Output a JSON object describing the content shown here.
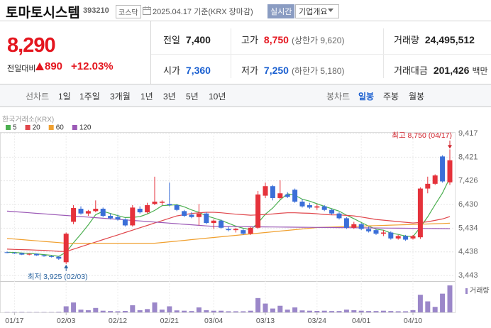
{
  "header": {
    "name": "토마토시스템",
    "code": "393210",
    "market": "코스닥",
    "date": "2025.04.17 기준(KRX 장마감)",
    "realtime": "실시간",
    "company": "기업개요"
  },
  "quote": {
    "price": "8,290",
    "change_label": "전일대비",
    "change": "890",
    "change_rate": "+12.03%"
  },
  "stats": [
    {
      "label": "전일",
      "value": "7,400"
    },
    {
      "label": "고가",
      "value": "8,750",
      "note": "(상한가 9,620)",
      "color": "#e4161f"
    },
    {
      "label": "거래량",
      "value": "24,495,512"
    },
    {
      "label": "시가",
      "value": "7,360",
      "color": "#1a5fd0"
    },
    {
      "label": "저가",
      "value": "7,250",
      "note": "(하한가 5,180)",
      "color": "#1a5fd0"
    },
    {
      "label": "거래대금",
      "value": "201,426",
      "unit": "백만"
    }
  ],
  "tabs": {
    "line_label": "선차트",
    "line": [
      "1일",
      "1주일",
      "3개월",
      "1년",
      "3년",
      "5년",
      "10년"
    ],
    "candle_label": "봉차트",
    "candle": [
      "일봉",
      "주봉",
      "월봉"
    ],
    "active_candle": 0
  },
  "chart_data": {
    "type": "candlestick",
    "source": "한국거래소(KRX)",
    "volume_label": "거래량",
    "annotations": {
      "high": "최고 8,750 (04/17)",
      "low": "최저 3,925 (02/03)"
    },
    "up_color": "#e5323b",
    "down_color": "#3b6fd8",
    "volume_color": "#9b87c9",
    "high_color": "#d0212a",
    "low_color": "#2a64a0",
    "grid": true,
    "ylim": [
      3443,
      9417
    ],
    "yticks": [
      {
        "value": 3443,
        "label": "3,443"
      },
      {
        "value": 4438,
        "label": "4,438"
      },
      {
        "value": 5434,
        "label": "5,434"
      },
      {
        "value": 6430,
        "label": "6,430"
      },
      {
        "value": 7426,
        "label": "7,426"
      },
      {
        "value": 8421,
        "label": "8,421"
      },
      {
        "value": 9417,
        "label": "9,417"
      }
    ],
    "categories": [
      null,
      "01/17",
      null,
      null,
      null,
      null,
      null,
      null,
      "02/03",
      null,
      null,
      null,
      null,
      null,
      null,
      "02/12",
      null,
      null,
      null,
      null,
      null,
      null,
      "02/21",
      null,
      null,
      null,
      null,
      null,
      "03/04",
      null,
      null,
      null,
      null,
      null,
      null,
      "03/13",
      null,
      null,
      null,
      null,
      null,
      null,
      "03/24",
      null,
      null,
      null,
      null,
      null,
      "04/01",
      null,
      null,
      null,
      null,
      null,
      null,
      "04/10",
      null,
      null,
      null,
      null,
      null
    ],
    "open": [
      4420,
      4400,
      4380,
      4320,
      4350,
      4290,
      4250,
      4230,
      4000,
      5700,
      6250,
      6050,
      6150,
      6250,
      5950,
      5900,
      5800,
      5550,
      6250,
      6100,
      6450,
      6500,
      6450,
      6400,
      6150,
      6000,
      5900,
      6050,
      5650,
      5750,
      5400,
      5350,
      5350,
      5200,
      5450,
      6800,
      7200,
      6700,
      6850,
      7050,
      6550,
      6400,
      6300,
      6350,
      6200,
      6050,
      5850,
      5450,
      5600,
      5400,
      5350,
      5200,
      5250,
      5000,
      5100,
      5000,
      5050,
      7100,
      7300,
      8450,
      7360
    ],
    "high": [
      4450,
      4430,
      4400,
      4380,
      4370,
      4320,
      4290,
      4250,
      5250,
      6400,
      6350,
      6200,
      6600,
      6300,
      6050,
      6000,
      5850,
      6400,
      6350,
      6500,
      7600,
      6600,
      7350,
      6450,
      6200,
      6100,
      6450,
      6100,
      5800,
      5800,
      5500,
      5450,
      5400,
      5500,
      7000,
      7350,
      7250,
      7450,
      6950,
      7100,
      6650,
      6500,
      6450,
      6400,
      6250,
      6100,
      5900,
      5700,
      5650,
      5500,
      5400,
      5350,
      5300,
      5150,
      5150,
      5150,
      7150,
      7600,
      7700,
      8500,
      8750
    ],
    "low": [
      4380,
      4350,
      4300,
      4290,
      4270,
      4230,
      4200,
      4100,
      3925,
      5600,
      6000,
      5950,
      6100,
      5900,
      5800,
      5750,
      5500,
      5500,
      6050,
      6050,
      6400,
      6400,
      6350,
      6150,
      5900,
      5850,
      5550,
      5600,
      5400,
      5400,
      5300,
      5250,
      5150,
      5150,
      5400,
      6700,
      6600,
      6650,
      6700,
      6500,
      6300,
      6250,
      6200,
      6150,
      6000,
      5800,
      5400,
      5400,
      5350,
      5250,
      5150,
      5100,
      4950,
      4950,
      4900,
      4950,
      4980,
      6900,
      7250,
      7350,
      7250
    ],
    "close": [
      4400,
      4380,
      4320,
      4350,
      4290,
      4250,
      4230,
      4150,
      5200,
      6280,
      6050,
      6150,
      6250,
      5950,
      5850,
      5800,
      5550,
      6300,
      6100,
      6400,
      6550,
      6550,
      6400,
      6200,
      5950,
      5900,
      6050,
      5650,
      5750,
      5450,
      5350,
      5400,
      5200,
      5450,
      6850,
      7200,
      6700,
      6900,
      6750,
      6550,
      6350,
      6300,
      6350,
      6200,
      6050,
      5850,
      5450,
      5600,
      5400,
      5300,
      5200,
      5250,
      5000,
      5100,
      4950,
      5100,
      7100,
      7300,
      7650,
      7400,
      8290
    ],
    "volume": [
      300000,
      300000,
      400000,
      300000,
      300000,
      300000,
      300000,
      500000,
      5500000,
      9000000,
      2500000,
      2000000,
      4000000,
      1500000,
      1200000,
      1000000,
      1300000,
      6500000,
      2000000,
      3000000,
      9000000,
      2500000,
      5500000,
      1800000,
      1500000,
      1200000,
      4500000,
      2000000,
      1500000,
      1500000,
      1000000,
      1000000,
      1000000,
      1500000,
      13000000,
      8000000,
      3500000,
      6000000,
      2500000,
      4500000,
      1800000,
      1500000,
      1300000,
      1500000,
      1200000,
      1200000,
      2500000,
      2000000,
      1500000,
      1200000,
      1200000,
      1500000,
      1200000,
      1000000,
      1000000,
      2000000,
      16000000,
      10000000,
      5000000,
      17000000,
      24495512
    ],
    "series": [
      {
        "name": "5",
        "color": "#4caf50",
        "values": [
          4420,
          4410,
          4390,
          4370,
          4350,
          4320,
          4290,
          4250,
          4420,
          4820,
          5180,
          5570,
          6000,
          6140,
          6050,
          5960,
          5880,
          5890,
          5920,
          6030,
          6180,
          6380,
          6400,
          6420,
          6330,
          6200,
          6100,
          5950,
          5860,
          5760,
          5640,
          5520,
          5430,
          5370,
          5650,
          6020,
          6280,
          6620,
          6880,
          6820,
          6650,
          6570,
          6460,
          6350,
          6250,
          6150,
          5980,
          5830,
          5670,
          5520,
          5390,
          5350,
          5230,
          5170,
          5100,
          5080,
          5470,
          5910,
          6420,
          6910,
          7550
        ]
      },
      {
        "name": "20",
        "color": "#e0474c",
        "values": [
          4550,
          4540,
          4530,
          4520,
          4510,
          4500,
          4480,
          4460,
          4450,
          4550,
          4650,
          4750,
          4850,
          4950,
          5050,
          5150,
          5250,
          5350,
          5450,
          5550,
          5650,
          5750,
          5850,
          5950,
          6000,
          6050,
          6080,
          6100,
          6100,
          6080,
          6050,
          6020,
          6000,
          5980,
          5990,
          6010,
          6030,
          6060,
          6080,
          6080,
          6070,
          6060,
          6040,
          6010,
          5990,
          5990,
          5970,
          5950,
          5900,
          5850,
          5800,
          5770,
          5740,
          5710,
          5680,
          5650,
          5670,
          5700,
          5760,
          5820,
          5920
        ]
      },
      {
        "name": "60",
        "color": "#f0a030",
        "values": [
          5000,
          4975,
          4950,
          4925,
          4900,
          4875,
          4850,
          4825,
          4800,
          4800,
          4800,
          4800,
          4800,
          4800,
          4800,
          4800,
          4800,
          4800,
          4800,
          4800,
          4800,
          4830,
          4860,
          4890,
          4920,
          4950,
          4980,
          5010,
          5040,
          5070,
          5100,
          5130,
          5160,
          5190,
          5220,
          5250,
          5280,
          5310,
          5340,
          5370,
          5400,
          5430,
          5460,
          5470,
          5480,
          5490,
          5500,
          5510,
          5520,
          5530,
          5540,
          5550,
          5560,
          5570,
          5580,
          5590,
          5600,
          5610,
          5620,
          5630,
          5640
        ]
      },
      {
        "name": "120",
        "color": "#9b59b6",
        "values": [
          6150,
          6127,
          6104,
          6081,
          6058,
          6035,
          6012,
          5989,
          5966,
          5943,
          5920,
          5897,
          5874,
          5851,
          5828,
          5805,
          5782,
          5759,
          5736,
          5713,
          5690,
          5667,
          5644,
          5621,
          5598,
          5575,
          5552,
          5529,
          5506,
          5503,
          5500,
          5497,
          5494,
          5491,
          5488,
          5485,
          5482,
          5479,
          5476,
          5473,
          5470,
          5467,
          5464,
          5461,
          5458,
          5455,
          5452,
          5449,
          5446,
          5443,
          5440,
          5437,
          5434,
          5431,
          5428,
          5425,
          5422,
          5419,
          5416,
          5413,
          5410
        ]
      }
    ]
  }
}
